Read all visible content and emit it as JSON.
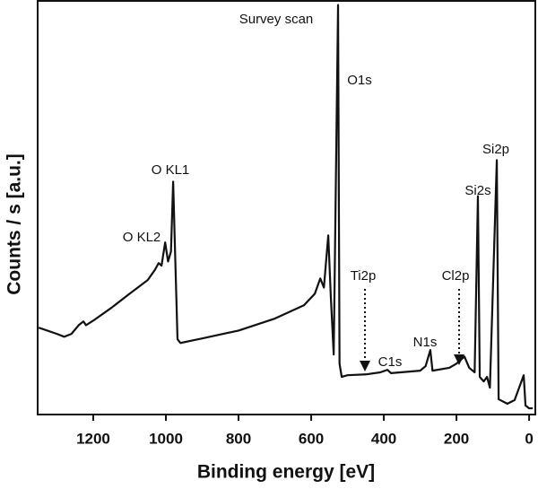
{
  "chart_data": {
    "type": "line",
    "title": "Survey scan",
    "x_label": "Binding energy [eV]",
    "y_label": "Counts / s [a.u.]",
    "color": "#111111",
    "xlim": [
      1353,
      -17
    ],
    "xticks": [
      1200,
      1000,
      800,
      600,
      400,
      200,
      0
    ],
    "ylim": [
      0,
      100
    ],
    "x": [
      1350,
      1300,
      1280,
      1260,
      1240,
      1227,
      1220,
      1200,
      1150,
      1100,
      1050,
      1030,
      1020,
      1012,
      1002,
      994,
      986,
      980,
      974,
      968,
      960,
      900,
      800,
      700,
      620,
      590,
      575,
      565,
      553,
      546,
      538,
      526,
      522,
      516,
      500,
      450,
      410,
      390,
      380,
      300,
      285,
      272,
      266,
      220,
      200,
      178,
      165,
      150,
      141,
      136,
      125,
      116,
      108,
      89,
      84,
      60,
      40,
      15,
      10,
      0,
      -10
    ],
    "values": [
      21,
      19.5,
      18.8,
      19.5,
      21.6,
      22.5,
      21.6,
      22.7,
      25.8,
      29.2,
      32.5,
      35,
      36.6,
      36,
      41.6,
      37,
      39.4,
      56.3,
      37,
      18.2,
      17.3,
      18.4,
      20.3,
      23.2,
      26.4,
      29.2,
      32.9,
      30.7,
      43.3,
      28.6,
      14.5,
      99,
      12.3,
      9.1,
      9.5,
      9.7,
      10.2,
      10.8,
      10,
      10.6,
      11.7,
      15.6,
      10.6,
      11.3,
      12.3,
      14,
      11.3,
      10.2,
      52.8,
      9.1,
      8,
      9.1,
      6.5,
      61.5,
      3.7,
      2.6,
      3.5,
      9.5,
      2.2,
      1.5,
      1.5
    ],
    "annotations": [
      "O1s",
      "O KL1",
      "O KL2",
      "Ti2p",
      "C1s",
      "N1s",
      "Cl2p",
      "Si2s",
      "Si2p"
    ]
  }
}
